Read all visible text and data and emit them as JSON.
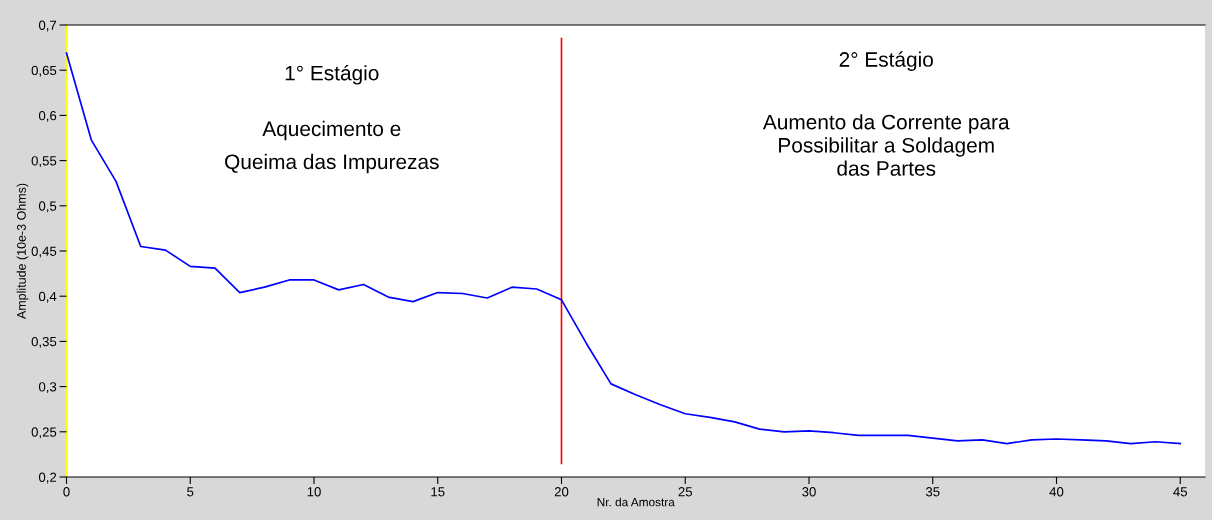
{
  "chart_data": {
    "type": "line",
    "xlabel": "Nr. da Amostra",
    "ylabel": "Amplitude (10e-3 Ohms)",
    "x": [
      0,
      1,
      2,
      3,
      4,
      5,
      6,
      7,
      8,
      9,
      10,
      11,
      12,
      13,
      14,
      15,
      16,
      17,
      18,
      19,
      20,
      21,
      22,
      23,
      24,
      25,
      26,
      27,
      28,
      29,
      30,
      31,
      32,
      33,
      34,
      35,
      36,
      37,
      38,
      39,
      40,
      41,
      42,
      43,
      44,
      45
    ],
    "series": [
      {
        "color": "#0000ff",
        "values": [
          0.669,
          0.573,
          0.527,
          0.455,
          0.451,
          0.433,
          0.431,
          0.404,
          0.41,
          0.418,
          0.418,
          0.407,
          0.413,
          0.399,
          0.394,
          0.404,
          0.403,
          0.398,
          0.41,
          0.408,
          0.396,
          0.348,
          0.303,
          0.291,
          0.28,
          0.27,
          0.266,
          0.261,
          0.253,
          0.25,
          0.251,
          0.249,
          0.246,
          0.246,
          0.246,
          0.243,
          0.24,
          0.241,
          0.237,
          0.241,
          0.242,
          0.241,
          0.24,
          0.237,
          0.239,
          0.237
        ]
      }
    ],
    "xlim": [
      0,
      46
    ],
    "xticks": [
      0,
      5,
      10,
      15,
      20,
      25,
      30,
      35,
      40,
      45
    ],
    "ylim": [
      0.2,
      0.7
    ],
    "yticks": [
      {
        "value": 0.2,
        "label": "0,2"
      },
      {
        "value": 0.25,
        "label": "0,25"
      },
      {
        "value": 0.3,
        "label": "0,3"
      },
      {
        "value": 0.35,
        "label": "0,35"
      },
      {
        "value": 0.4,
        "label": "0,4"
      },
      {
        "value": 0.45,
        "label": "0,45"
      },
      {
        "value": 0.5,
        "label": "0,5"
      },
      {
        "value": 0.55,
        "label": "0,55"
      },
      {
        "value": 0.6,
        "label": "0,6"
      },
      {
        "value": 0.65,
        "label": "0,65"
      },
      {
        "value": 0.7,
        "label": "0,7"
      }
    ],
    "ref_lines": [
      {
        "axis": "x",
        "value": 20,
        "color": "#ff0000"
      }
    ],
    "annotations": [
      "1° Estágio",
      "Aquecimento e\nQueima das Impurezas",
      "2° Estágio",
      "Aumento da Corrente para\nPossibilitar a Soldagem\ndas Partes"
    ],
    "grid": false,
    "legend": false
  }
}
